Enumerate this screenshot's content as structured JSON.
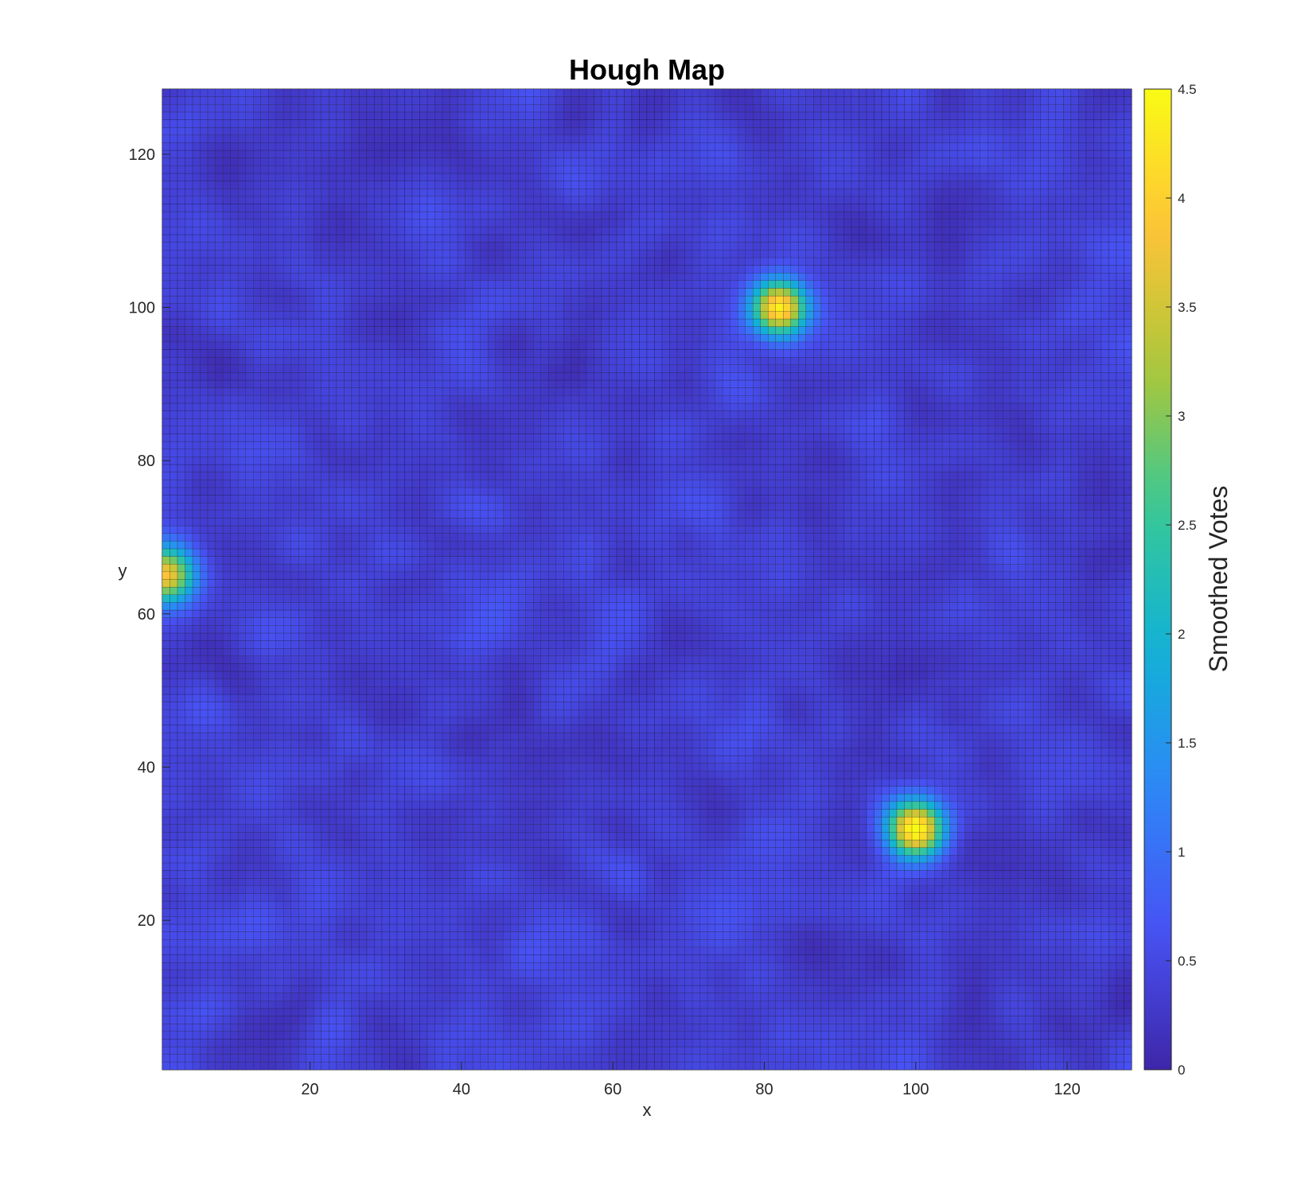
{
  "chart_data": {
    "type": "heatmap",
    "title": "Hough Map",
    "xlabel": "x",
    "ylabel": "y",
    "grid_size": [
      128,
      128
    ],
    "xlim": [
      1,
      128
    ],
    "ylim": [
      1,
      128
    ],
    "xticks": [
      20,
      40,
      60,
      80,
      100,
      120
    ],
    "yticks": [
      20,
      40,
      60,
      80,
      100,
      120
    ],
    "colorbar": {
      "label": "Smoothed Votes",
      "range": [
        0,
        4.5
      ],
      "ticks": [
        0,
        0.5,
        1,
        1.5,
        2,
        2.5,
        3,
        3.5,
        4,
        4.5
      ],
      "tick_labels": [
        "0",
        "0.5",
        "1",
        "1.5",
        "2",
        "2.5",
        "3",
        "3.5",
        "4",
        "4.5"
      ],
      "colormap": "parula"
    },
    "background_level": 0.35,
    "peaks": [
      {
        "x": 82,
        "y": 100,
        "value": 3.8
      },
      {
        "x": 100,
        "y": 32,
        "value": 4.1
      },
      {
        "x": 1,
        "y": 65,
        "value": 3.6
      }
    ],
    "edge_color": "#000000"
  }
}
